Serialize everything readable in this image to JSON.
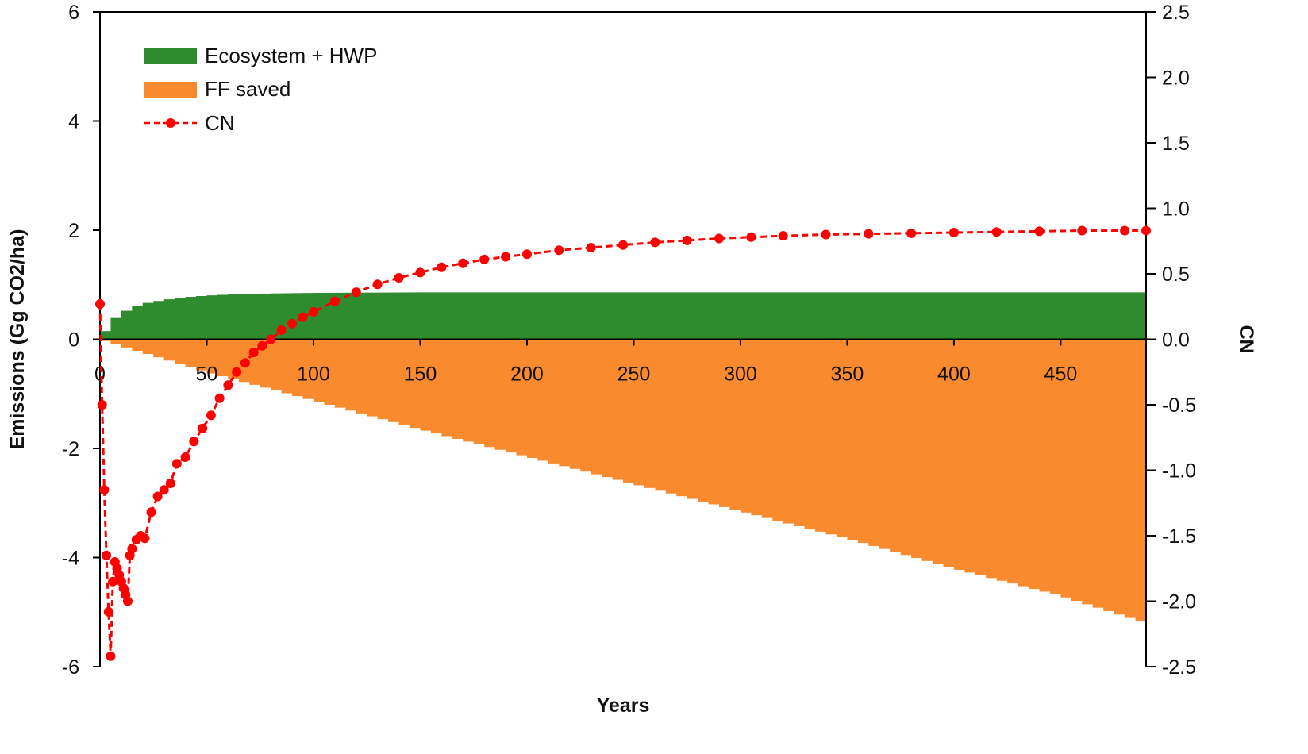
{
  "chart_data": {
    "type": "bar+line",
    "title": "",
    "xlabel": "Years",
    "ylabel_left": "Emissions (Gg CO2/ha)",
    "ylabel_right": "CN",
    "xlim": [
      0,
      490
    ],
    "ylim_left": [
      -6,
      6
    ],
    "ylim_right": [
      -2.5,
      2.5
    ],
    "x_ticks": [
      0,
      50,
      100,
      150,
      200,
      250,
      300,
      350,
      400,
      450
    ],
    "x_tick_labels": [
      "0",
      "50",
      "100",
      "150",
      "200",
      "250",
      "300",
      "350",
      "400",
      "450"
    ],
    "y_left_ticks": [
      6,
      4,
      2,
      0,
      -2,
      -4,
      -6
    ],
    "y_left_tick_labels": [
      "6",
      "4",
      "2",
      "0",
      "-2",
      "-4",
      "-6"
    ],
    "y_right_ticks": [
      2.5,
      2.0,
      1.5,
      1.0,
      0.5,
      0.0,
      -0.5,
      -1.0,
      -1.5,
      -2.0,
      -2.5
    ],
    "y_right_tick_labels": [
      "2.5",
      "2.0",
      "1.5",
      "1.0",
      "0.5",
      "0.0",
      "-0.5",
      "-1.0",
      "-1.5",
      "-2.0",
      "-2.5"
    ],
    "grid": false,
    "legend_position": "top-left",
    "series": [
      {
        "name": "Ecosystem + HWP",
        "kind": "bar",
        "axis": "left",
        "color": "#2e8b2e",
        "x": [
          0,
          5,
          10,
          20,
          30,
          40,
          50,
          60,
          80,
          100,
          150,
          200,
          250,
          300,
          350,
          400,
          450,
          490
        ],
        "values": [
          0,
          0.3,
          0.48,
          0.65,
          0.72,
          0.77,
          0.8,
          0.82,
          0.84,
          0.85,
          0.86,
          0.86,
          0.86,
          0.86,
          0.86,
          0.86,
          0.86,
          0.86
        ]
      },
      {
        "name": "FF saved",
        "kind": "bar",
        "axis": "left",
        "color": "#f98a2e",
        "x": [
          0,
          50,
          100,
          150,
          200,
          250,
          300,
          350,
          400,
          450,
          490
        ],
        "values": [
          0,
          -0.6,
          -1.12,
          -1.65,
          -2.15,
          -2.65,
          -3.15,
          -3.65,
          -4.2,
          -4.7,
          -5.2
        ]
      },
      {
        "name": "CN",
        "kind": "line",
        "axis": "right",
        "color": "#ff0000",
        "x": [
          0,
          1,
          2,
          3,
          4,
          5,
          6,
          7,
          8,
          9,
          10,
          11,
          12,
          13,
          14,
          15,
          17,
          19,
          21,
          24,
          27,
          30,
          33,
          36,
          40,
          44,
          48,
          52,
          56,
          60,
          64,
          68,
          72,
          76,
          80,
          85,
          90,
          95,
          100,
          110,
          120,
          130,
          140,
          150,
          160,
          170,
          180,
          190,
          200,
          215,
          230,
          245,
          260,
          275,
          290,
          305,
          320,
          340,
          360,
          380,
          400,
          420,
          440,
          460,
          480,
          490
        ],
        "values": [
          0.27,
          -0.5,
          -1.15,
          -1.65,
          -2.08,
          -2.42,
          -1.85,
          -1.7,
          -1.75,
          -1.8,
          -1.85,
          -1.9,
          -1.95,
          -2.0,
          -1.65,
          -1.6,
          -1.53,
          -1.5,
          -1.52,
          -1.32,
          -1.2,
          -1.15,
          -1.1,
          -0.95,
          -0.9,
          -0.78,
          -0.68,
          -0.58,
          -0.45,
          -0.35,
          -0.25,
          -0.18,
          -0.1,
          -0.05,
          0.0,
          0.07,
          0.12,
          0.17,
          0.21,
          0.29,
          0.36,
          0.42,
          0.47,
          0.51,
          0.55,
          0.58,
          0.61,
          0.63,
          0.65,
          0.68,
          0.7,
          0.72,
          0.74,
          0.755,
          0.77,
          0.78,
          0.79,
          0.8,
          0.805,
          0.81,
          0.815,
          0.82,
          0.825,
          0.83,
          0.83,
          0.83
        ]
      }
    ]
  }
}
